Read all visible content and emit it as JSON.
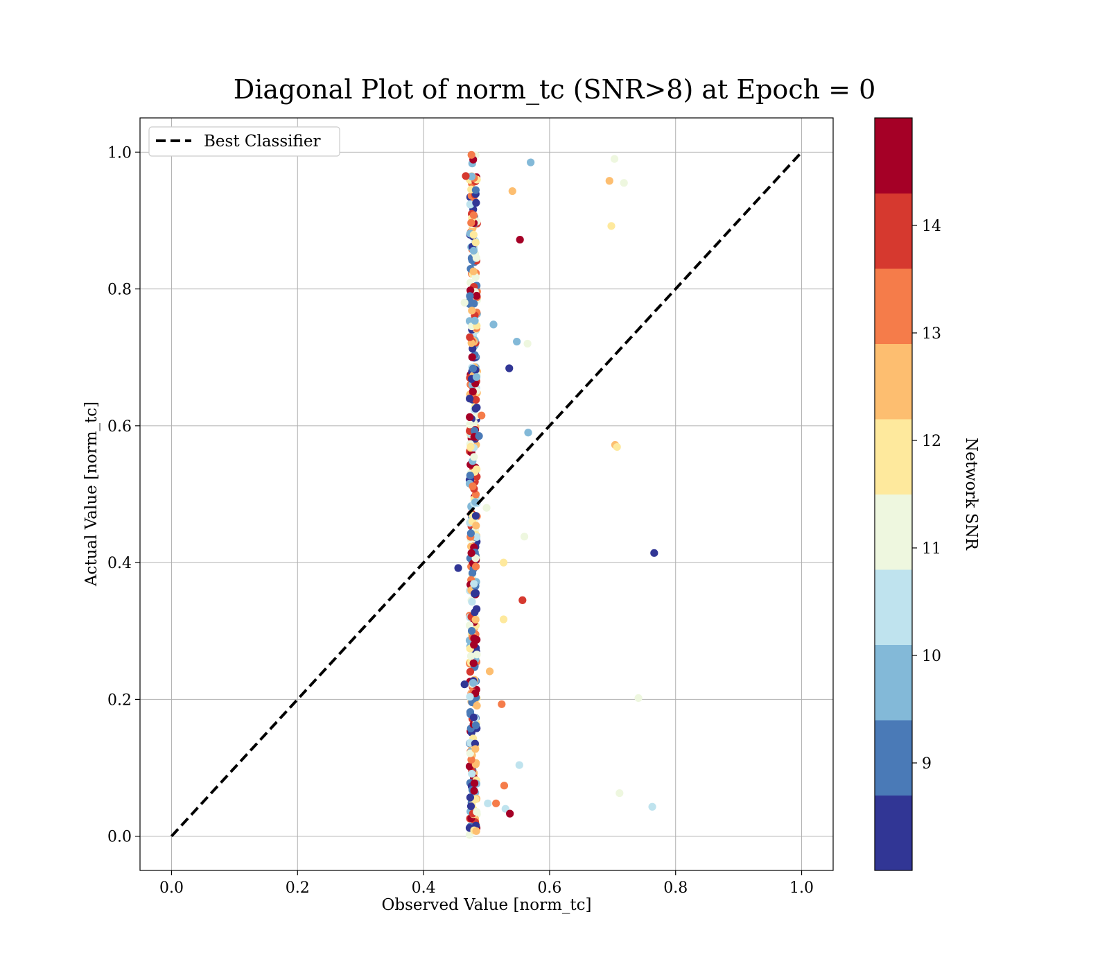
{
  "chart_data": {
    "type": "scatter",
    "title": "Diagonal Plot of norm_tc (SNR>8) at Epoch = 0",
    "xlabel": "Observed Value [norm_tc]",
    "ylabel": "Actual Value [norm_tc]",
    "xlim": [
      -0.05,
      1.05
    ],
    "ylim": [
      -0.05,
      1.05
    ],
    "xticks": [
      "0.0",
      "0.2",
      "0.4",
      "0.6",
      "0.8",
      "1.0"
    ],
    "yticks": [
      "0.0",
      "0.2",
      "0.4",
      "0.6",
      "0.8",
      "1.0"
    ],
    "grid": true,
    "legend": {
      "position": "top-left",
      "entries": [
        {
          "label": "Best Classifier",
          "style": "dashed-black"
        }
      ]
    },
    "reference_line": {
      "label": "Best Classifier",
      "x": [
        0,
        1
      ],
      "y": [
        0,
        1
      ]
    },
    "colorbar": {
      "label": "Network SNR",
      "range": [
        8,
        15
      ],
      "ticks": [
        "9",
        "10",
        "11",
        "12",
        "13",
        "14"
      ],
      "colors": [
        "#313695",
        "#4a7ab7",
        "#83b9d8",
        "#bfe3ee",
        "#eef7df",
        "#fee99d",
        "#fdbe70",
        "#f57c4a",
        "#d6392f",
        "#a50026"
      ]
    },
    "outliers": [
      {
        "x": 0.57,
        "y": 0.985,
        "snr": 10.0
      },
      {
        "x": 0.703,
        "y": 0.99,
        "snr": 11.3
      },
      {
        "x": 0.695,
        "y": 0.958,
        "snr": 12.5
      },
      {
        "x": 0.718,
        "y": 0.955,
        "snr": 11.2
      },
      {
        "x": 0.541,
        "y": 0.943,
        "snr": 12.5
      },
      {
        "x": 0.698,
        "y": 0.892,
        "snr": 12.1
      },
      {
        "x": 0.553,
        "y": 0.872,
        "snr": 14.8
      },
      {
        "x": 0.465,
        "y": 0.78,
        "snr": 11.2
      },
      {
        "x": 0.511,
        "y": 0.748,
        "snr": 9.8
      },
      {
        "x": 0.548,
        "y": 0.723,
        "snr": 9.8
      },
      {
        "x": 0.565,
        "y": 0.72,
        "snr": 11.2
      },
      {
        "x": 0.536,
        "y": 0.684,
        "snr": 8.2
      },
      {
        "x": 0.566,
        "y": 0.59,
        "snr": 9.9
      },
      {
        "x": 0.704,
        "y": 0.572,
        "snr": 12.5
      },
      {
        "x": 0.707,
        "y": 0.569,
        "snr": 11.9
      },
      {
        "x": 0.5,
        "y": 0.48,
        "snr": 11.2
      },
      {
        "x": 0.56,
        "y": 0.438,
        "snr": 11.3
      },
      {
        "x": 0.766,
        "y": 0.414,
        "snr": 8.2
      },
      {
        "x": 0.455,
        "y": 0.392,
        "snr": 8.2
      },
      {
        "x": 0.527,
        "y": 0.4,
        "snr": 11.9
      },
      {
        "x": 0.557,
        "y": 0.345,
        "snr": 13.8
      },
      {
        "x": 0.527,
        "y": 0.317,
        "snr": 11.9
      },
      {
        "x": 0.505,
        "y": 0.241,
        "snr": 12.6
      },
      {
        "x": 0.741,
        "y": 0.202,
        "snr": 11.2
      },
      {
        "x": 0.524,
        "y": 0.193,
        "snr": 13.2
      },
      {
        "x": 0.552,
        "y": 0.104,
        "snr": 10.5
      },
      {
        "x": 0.528,
        "y": 0.074,
        "snr": 13.2
      },
      {
        "x": 0.711,
        "y": 0.063,
        "snr": 11.2
      },
      {
        "x": 0.515,
        "y": 0.048,
        "snr": 13.2
      },
      {
        "x": 0.502,
        "y": 0.048,
        "snr": 10.5
      },
      {
        "x": 0.53,
        "y": 0.04,
        "snr": 10.4
      },
      {
        "x": 0.763,
        "y": 0.043,
        "snr": 10.5
      },
      {
        "x": 0.537,
        "y": 0.033,
        "snr": 14.8
      },
      {
        "x": 0.465,
        "y": 0.222,
        "snr": 8.2
      },
      {
        "x": 0.467,
        "y": 0.965,
        "snr": 13.8
      },
      {
        "x": 0.488,
        "y": 0.585,
        "snr": 9.0
      },
      {
        "x": 0.492,
        "y": 0.615,
        "snr": 13.2
      }
    ],
    "column": {
      "x_center": 0.479,
      "x_spread": 0.006,
      "y_range": [
        0.0,
        1.0
      ],
      "count": 420,
      "snr_range": [
        8,
        15
      ]
    }
  }
}
